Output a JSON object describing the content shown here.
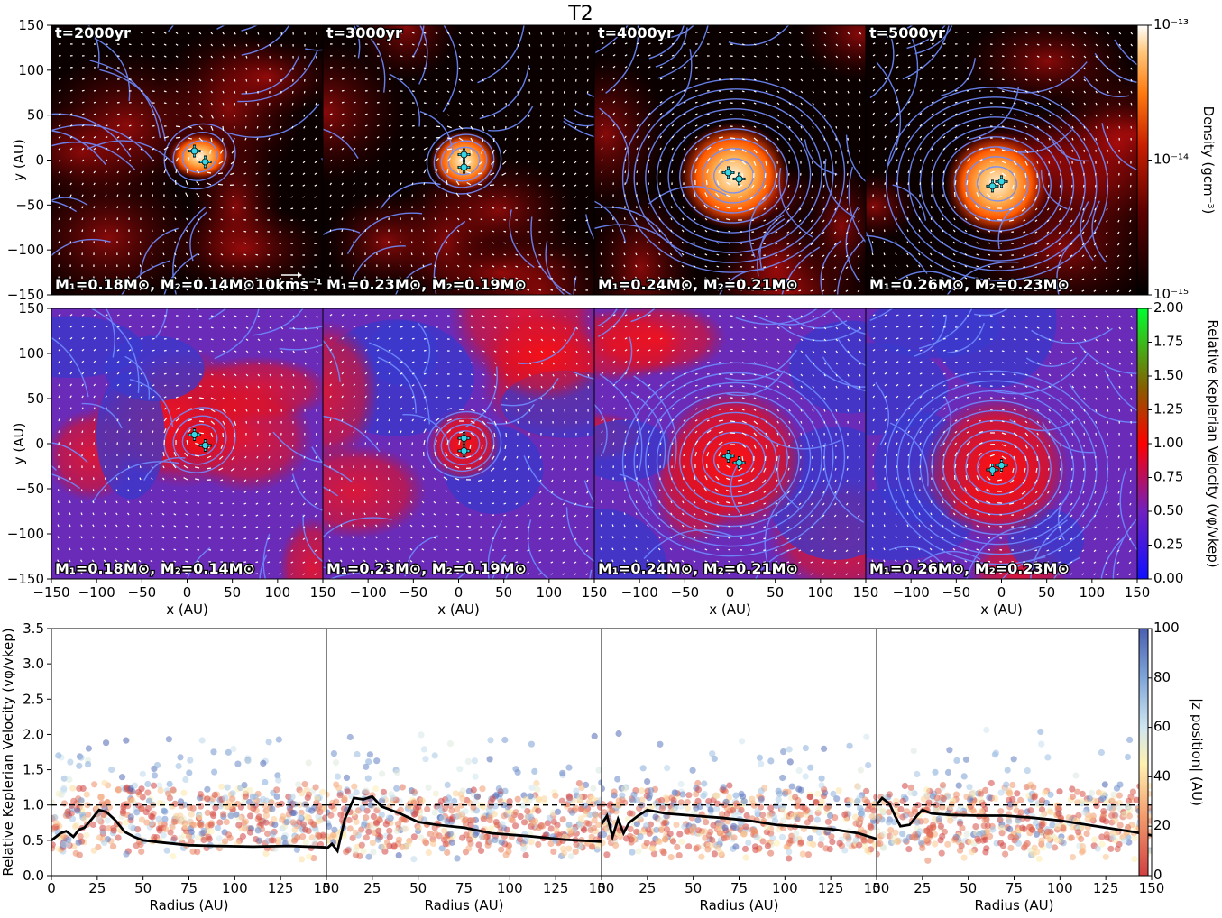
{
  "figure_title": "T2",
  "colors": {
    "streamline": "#6f8cff",
    "sink_marker": "#35d6e6",
    "curve": "#000000"
  },
  "chart_data": [
    {
      "id": "density-maps",
      "type": "heatmap",
      "panels": [
        {
          "time_label": "t=2000yr",
          "mass_label": "M₁=0.18M⊙, M₂=0.14M⊙",
          "sinks": [
            [
              8,
              10
            ],
            [
              20,
              -2
            ]
          ]
        },
        {
          "time_label": "t=3000yr",
          "mass_label": "M₁=0.23M⊙, M₂=0.19M⊙",
          "sinks": [
            [
              6,
              6
            ],
            [
              6,
              -8
            ]
          ]
        },
        {
          "time_label": "t=4000yr",
          "mass_label": "M₁=0.24M⊙, M₂=0.21M⊙",
          "sinks": [
            [
              -2,
              -14
            ],
            [
              10,
              -21
            ]
          ]
        },
        {
          "time_label": "t=5000yr",
          "mass_label": "M₁=0.26M⊙, M₂=0.23M⊙",
          "sinks": [
            [
              -10,
              -29
            ],
            [
              0,
              -24
            ]
          ]
        }
      ],
      "xlim": [
        -150,
        150
      ],
      "ylim": [
        -150,
        150
      ],
      "ylabel": "y (AU)",
      "yticks": [
        150,
        100,
        50,
        0,
        -50,
        -100,
        -150
      ],
      "velocity_key": "10kms⁻¹",
      "colorbar": {
        "label": "Density (gcm⁻³)",
        "scale": "log",
        "ticks": [
          "10⁻¹³",
          "10⁻¹⁴",
          "10⁻¹⁵"
        ],
        "range": [
          1e-15,
          1e-13
        ]
      }
    },
    {
      "id": "keplerian-maps",
      "type": "heatmap",
      "panels": [
        {
          "mass_label": "M₁=0.18M⊙, M₂=0.14M⊙",
          "sinks": [
            [
              8,
              10
            ],
            [
              20,
              -2
            ]
          ]
        },
        {
          "mass_label": "M₁=0.23M⊙, M₂=0.19M⊙",
          "sinks": [
            [
              6,
              6
            ],
            [
              6,
              -8
            ]
          ]
        },
        {
          "mass_label": "M₁=0.24M⊙, M₂=0.21M⊙",
          "sinks": [
            [
              -2,
              -14
            ],
            [
              10,
              -21
            ]
          ]
        },
        {
          "mass_label": "M₁=0.26M⊙, M₂=0.23M⊙",
          "sinks": [
            [
              -10,
              -29
            ],
            [
              0,
              -24
            ]
          ]
        }
      ],
      "xlim": [
        -150,
        150
      ],
      "ylim": [
        -150,
        150
      ],
      "xlabel": "x (AU)",
      "ylabel": "y (AU)",
      "xticks": [
        "−150",
        "−100",
        "−50",
        "0",
        "50",
        "100",
        "150"
      ],
      "yticks": [
        150,
        100,
        50,
        0,
        -50,
        -100,
        -150
      ],
      "colorbar": {
        "label": "Relative Keplerian Velocity (vφ/vkep)",
        "ticks": [
          "2.00",
          "1.75",
          "1.50",
          "1.25",
          "1.00",
          "0.75",
          "0.50",
          "0.25",
          "0.00"
        ],
        "range": [
          0,
          2
        ]
      }
    },
    {
      "id": "keplerian-profiles",
      "type": "scatter",
      "xlabel": "Radius (AU)",
      "ylabel": "Relative Keplerian Velocity (vφ/vkep)",
      "xlim": [
        0,
        150
      ],
      "ylim": [
        0,
        3.5
      ],
      "xticks": [
        0,
        25,
        50,
        75,
        100,
        125,
        150
      ],
      "yticks": [
        "0.0",
        "0.5",
        "1.0",
        "1.5",
        "2.0",
        "2.5",
        "3.0",
        "3.5"
      ],
      "reference_line": 1.0,
      "colorbar": {
        "label": "|z position| (AU)",
        "ticks": [
          "100",
          "80",
          "60",
          "40",
          "20",
          "0"
        ],
        "range": [
          0,
          100
        ]
      },
      "panels": [
        {
          "curve": [
            [
              0,
              0.5
            ],
            [
              5,
              0.6
            ],
            [
              8,
              0.63
            ],
            [
              12,
              0.55
            ],
            [
              15,
              0.65
            ],
            [
              18,
              0.68
            ],
            [
              22,
              0.8
            ],
            [
              26,
              0.93
            ],
            [
              30,
              0.9
            ],
            [
              35,
              0.78
            ],
            [
              40,
              0.62
            ],
            [
              45,
              0.55
            ],
            [
              50,
              0.5
            ],
            [
              60,
              0.47
            ],
            [
              75,
              0.43
            ],
            [
              90,
              0.42
            ],
            [
              110,
              0.41
            ],
            [
              130,
              0.42
            ],
            [
              150,
              0.4
            ]
          ]
        },
        {
          "curve": [
            [
              0,
              0.38
            ],
            [
              3,
              0.45
            ],
            [
              6,
              0.35
            ],
            [
              10,
              0.8
            ],
            [
              15,
              1.1
            ],
            [
              20,
              1.08
            ],
            [
              25,
              1.12
            ],
            [
              30,
              0.98
            ],
            [
              40,
              0.88
            ],
            [
              50,
              0.76
            ],
            [
              60,
              0.72
            ],
            [
              75,
              0.68
            ],
            [
              90,
              0.6
            ],
            [
              110,
              0.56
            ],
            [
              130,
              0.51
            ],
            [
              150,
              0.48
            ]
          ]
        },
        {
          "curve": [
            [
              0,
              0.73
            ],
            [
              3,
              0.85
            ],
            [
              6,
              0.55
            ],
            [
              9,
              0.8
            ],
            [
              12,
              0.6
            ],
            [
              15,
              0.75
            ],
            [
              20,
              0.85
            ],
            [
              25,
              0.93
            ],
            [
              35,
              0.88
            ],
            [
              50,
              0.85
            ],
            [
              65,
              0.82
            ],
            [
              80,
              0.78
            ],
            [
              95,
              0.72
            ],
            [
              110,
              0.69
            ],
            [
              125,
              0.66
            ],
            [
              140,
              0.6
            ],
            [
              150,
              0.52
            ]
          ]
        },
        {
          "curve": [
            [
              0,
              1.0
            ],
            [
              3,
              1.1
            ],
            [
              7,
              1.02
            ],
            [
              10,
              0.85
            ],
            [
              13,
              0.7
            ],
            [
              18,
              0.72
            ],
            [
              22,
              0.85
            ],
            [
              25,
              0.93
            ],
            [
              30,
              0.88
            ],
            [
              40,
              0.86
            ],
            [
              55,
              0.85
            ],
            [
              70,
              0.85
            ],
            [
              85,
              0.82
            ],
            [
              100,
              0.78
            ],
            [
              120,
              0.7
            ],
            [
              140,
              0.62
            ],
            [
              150,
              0.57
            ]
          ]
        }
      ]
    }
  ]
}
